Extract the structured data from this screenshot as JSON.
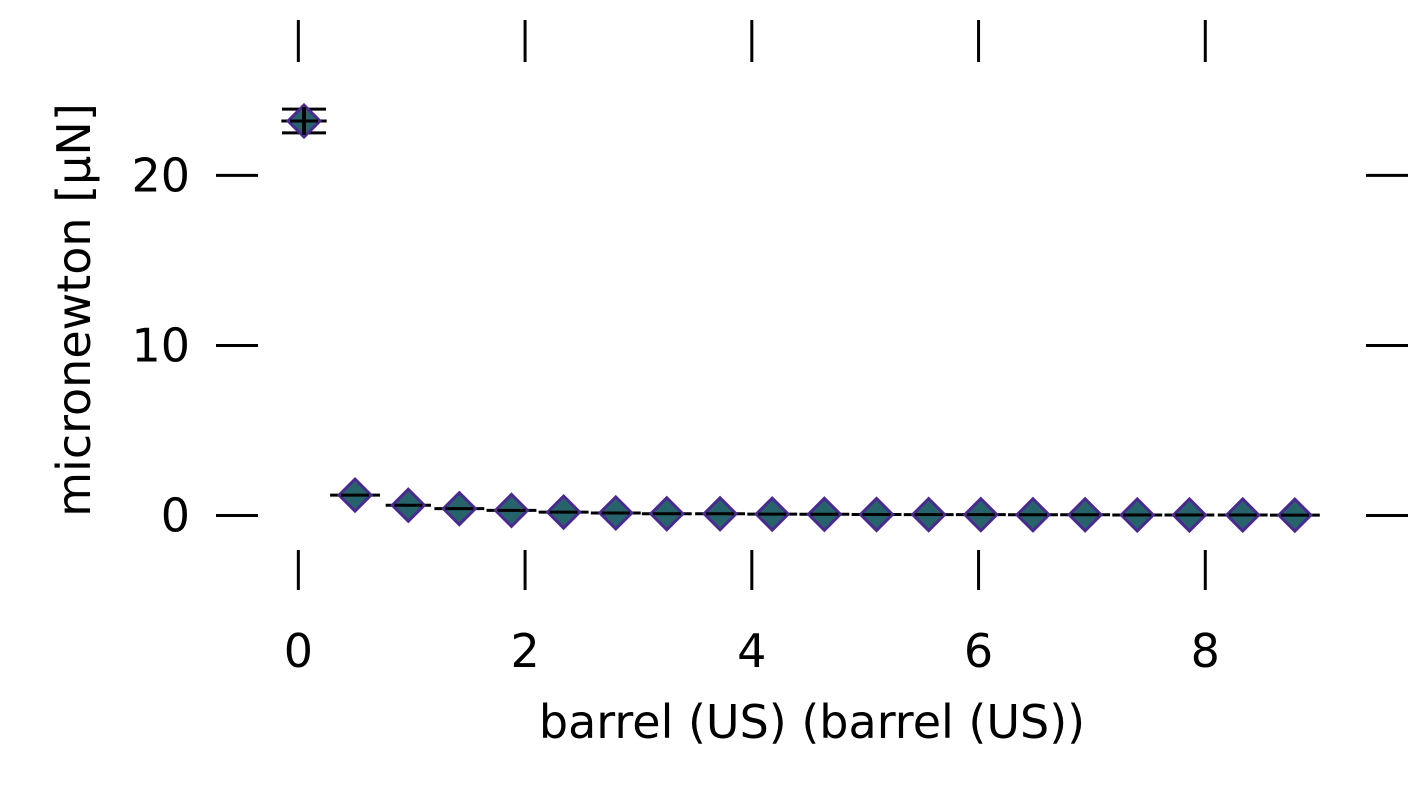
{
  "chart_data": {
    "type": "scatter",
    "title": "",
    "xlabel": "barrel (US) (barrel (US))",
    "ylabel": "micronewton [µN]",
    "xlim": [
      -0.25,
      9.1
    ],
    "ylim": [
      -3.5,
      26.2
    ],
    "x_ticks": [
      0,
      2,
      4,
      6,
      8
    ],
    "x_tick_labels": [
      "0",
      "2",
      "4",
      "6",
      "8"
    ],
    "y_ticks": [
      0,
      10,
      20
    ],
    "y_tick_labels": [
      "0",
      "10",
      "20"
    ],
    "grid": false,
    "legend": "none",
    "marker": "diamond",
    "marker_fill": "#26636b",
    "marker_edge": "#4b2a8f",
    "errorbar_color": "#000000",
    "series": [
      {
        "x": [
          0.05,
          0.5,
          0.97,
          1.42,
          1.88,
          2.34,
          2.8,
          3.25,
          3.72,
          4.18,
          4.64,
          5.1,
          5.56,
          6.02,
          6.48,
          6.94,
          7.4,
          7.86,
          8.33,
          8.79
        ],
        "y": [
          23.2,
          1.2,
          0.6,
          0.4,
          0.3,
          0.2,
          0.15,
          0.1,
          0.1,
          0.08,
          0.07,
          0.06,
          0.05,
          0.05,
          0.04,
          0.04,
          0.03,
          0.03,
          0.03,
          0.02
        ],
        "x_err": [
          0.2,
          0.22,
          0.2,
          0.22,
          0.22,
          0.22,
          0.22,
          0.22,
          0.22,
          0.22,
          0.22,
          0.22,
          0.22,
          0.22,
          0.22,
          0.22,
          0.22,
          0.22,
          0.22,
          0.22
        ],
        "y_err": [
          0.7,
          0.05,
          0.05,
          0.03,
          0.02,
          0.02,
          0.02,
          0.02,
          0.02,
          0.02,
          0.02,
          0.02,
          0.02,
          0.02,
          0.02,
          0.02,
          0.02,
          0.02,
          0.02,
          0.02
        ]
      }
    ]
  }
}
